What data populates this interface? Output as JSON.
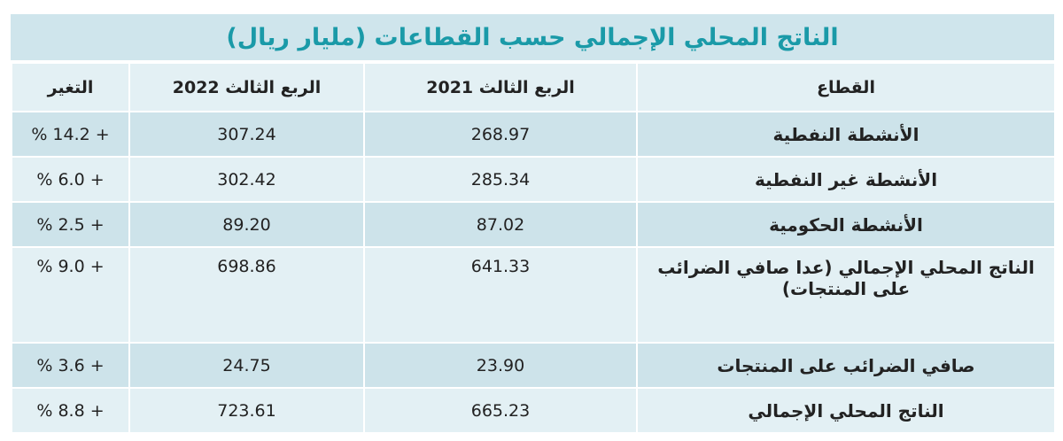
{
  "title": "الناتج المحلي الإجمالي حسب القطاعات (مليار ريال)",
  "headers": [
    "القطاع",
    "الربع الثالث 2021",
    "الربع الثالث 2022",
    "التغير"
  ],
  "rows": [
    {
      "sector": "الأنشطة النفطية",
      "q3_2021": "268.97",
      "q3_2022": "307.24",
      "change": "% 14.2 +"
    },
    {
      "sector": "الأنشطة غير النفطية",
      "q3_2021": "285.34",
      "q3_2022": "302.42",
      "change": "% 6.0 +"
    },
    {
      "sector": "الأنشطة الحكومية",
      "q3_2021": "87.02",
      "q3_2022": "89.20",
      "change": "% 2.5 +"
    },
    {
      "sector": "الناتج المحلي الإجمالي (عدا صافي الضرائب على المنتجات)",
      "q3_2021": "641.33",
      "q3_2022": "698.86",
      "change": "% 9.0 +"
    },
    {
      "sector": "صافي الضرائب على المنتجات",
      "q3_2021": "23.90",
      "q3_2022": "24.75",
      "change": "% 3.6 +"
    },
    {
      "sector": "الناتج المحلي الإجمالي",
      "q3_2021": "665.23",
      "q3_2022": "723.61",
      "change": "% 8.8 +"
    }
  ],
  "colors": {
    "title_text": "#1a9aa8",
    "title_bg": "#cfe5ec",
    "row_dark": "#cde3ea",
    "row_light": "#e3f0f4"
  }
}
